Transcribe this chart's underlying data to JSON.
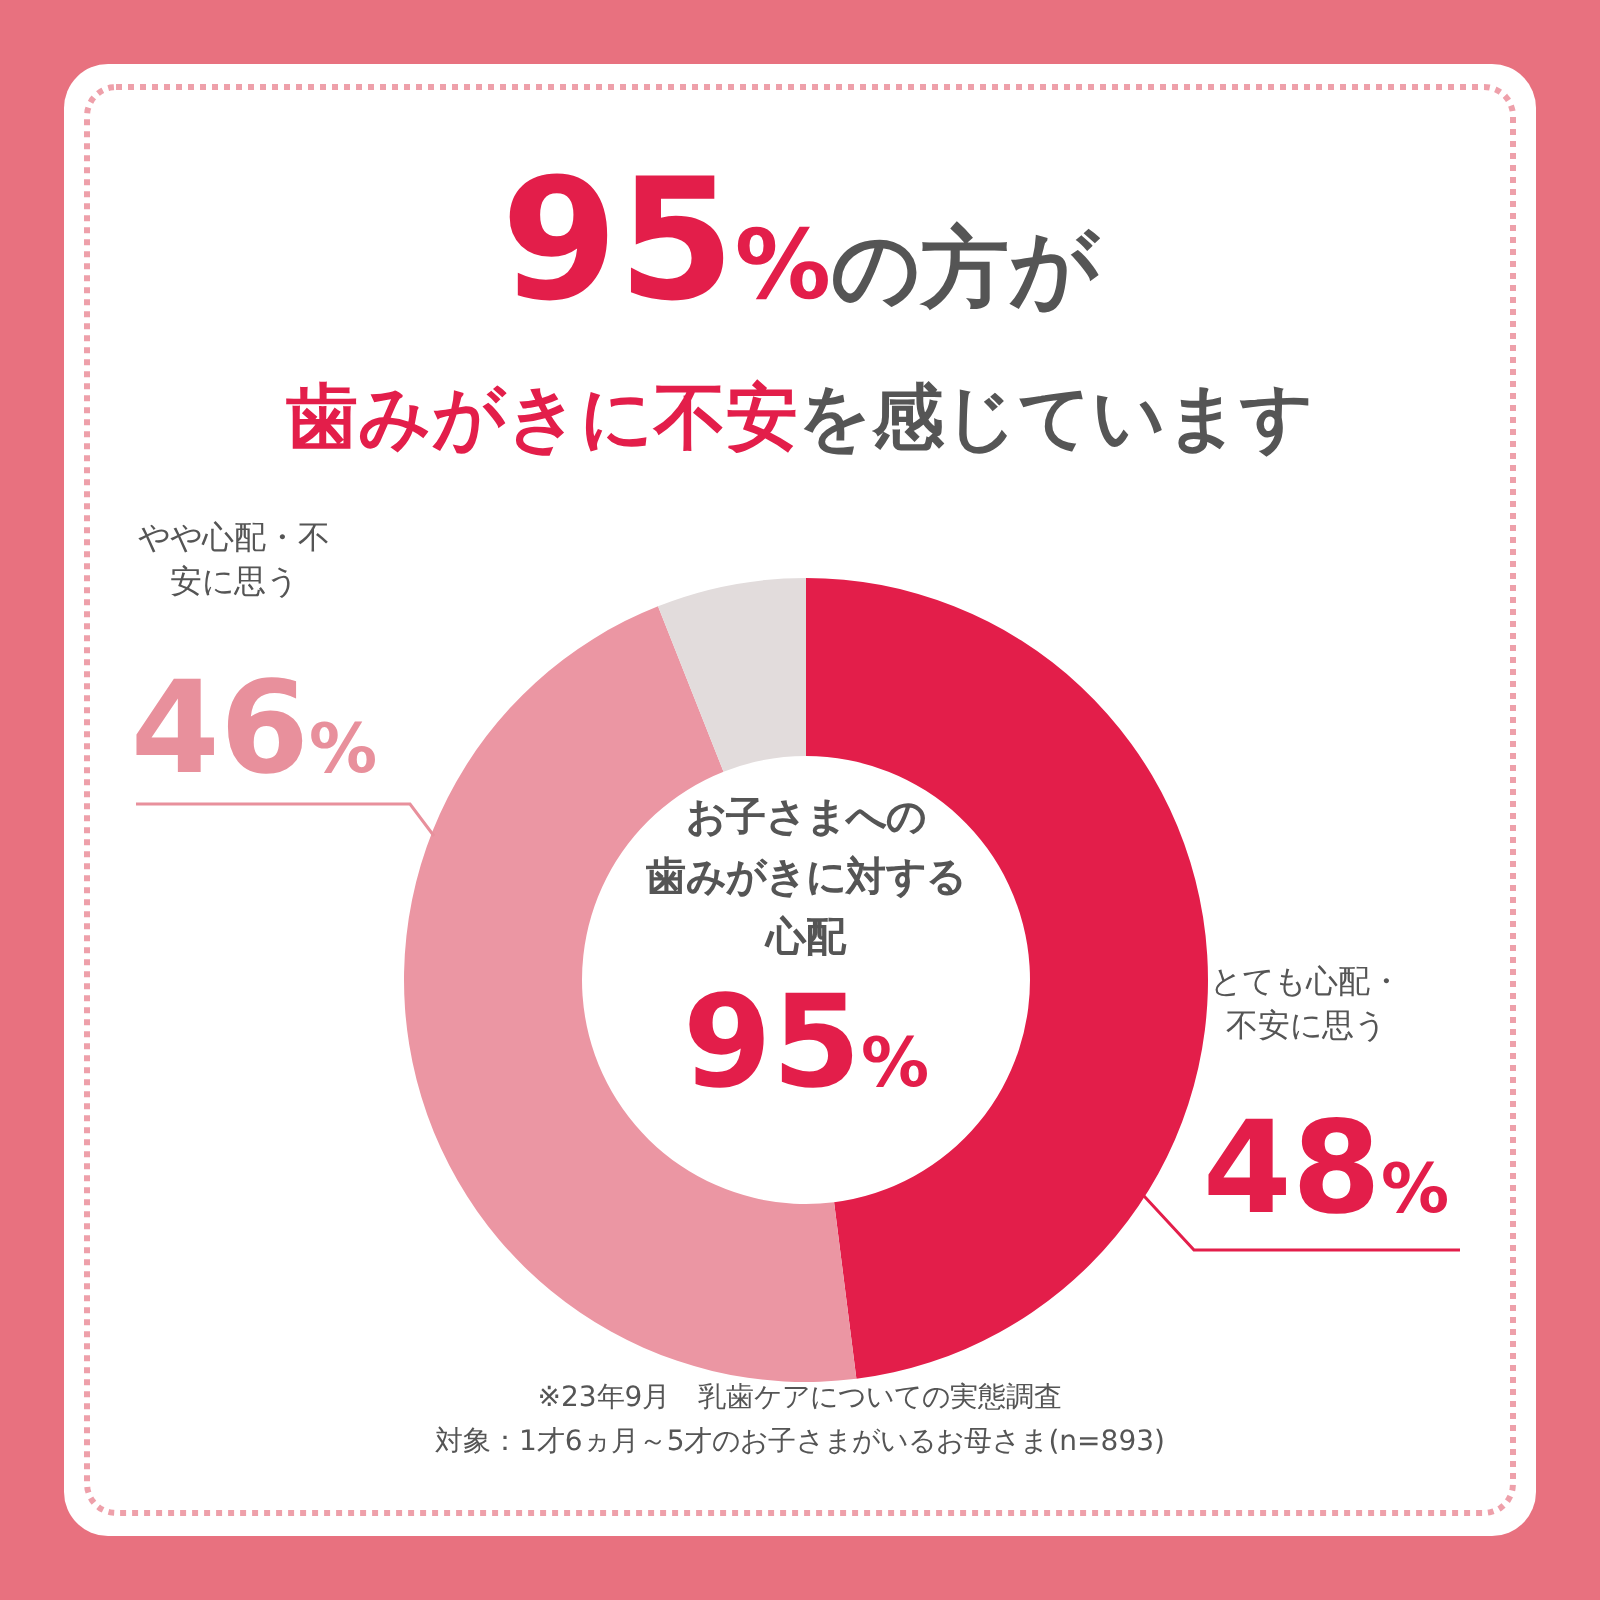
{
  "chart_data": {
    "type": "donut",
    "title": "**95%**の方が",
    "subtitle": "**歯みがきに不安**を感じています",
    "categories": [
      "とても心配・不安に思う",
      "やや心配・不安に思う",
      null
    ],
    "values": [
      48,
      46,
      6
    ],
    "colors": [
      "#e31e4a",
      "#eb96a3",
      "#e2dcdc"
    ],
    "value_labels": [
      "48%",
      "46%",
      null
    ],
    "annotations": [
      "お子さまへの",
      "歯みがきに対する",
      "心配",
      "95%",
      "※23年9月　乳歯ケアについての実態調査",
      "対象：1才6ヵ月～5才のお子さまがいるお母さま(n=893)"
    ]
  }
}
